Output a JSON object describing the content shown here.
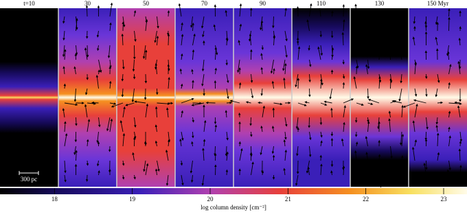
{
  "chart_data": {
    "type": "image-grid",
    "panel_labels": [
      "t=10",
      "30",
      "50",
      "70",
      "90",
      "110",
      "130",
      "150 Myr"
    ],
    "scale_bar_label": "300 pc",
    "colorbar": {
      "label": "log column density [cm⁻²]",
      "lim": [
        17.3,
        23.3
      ],
      "ticks": [
        18,
        19,
        20,
        21,
        22,
        23
      ]
    }
  }
}
